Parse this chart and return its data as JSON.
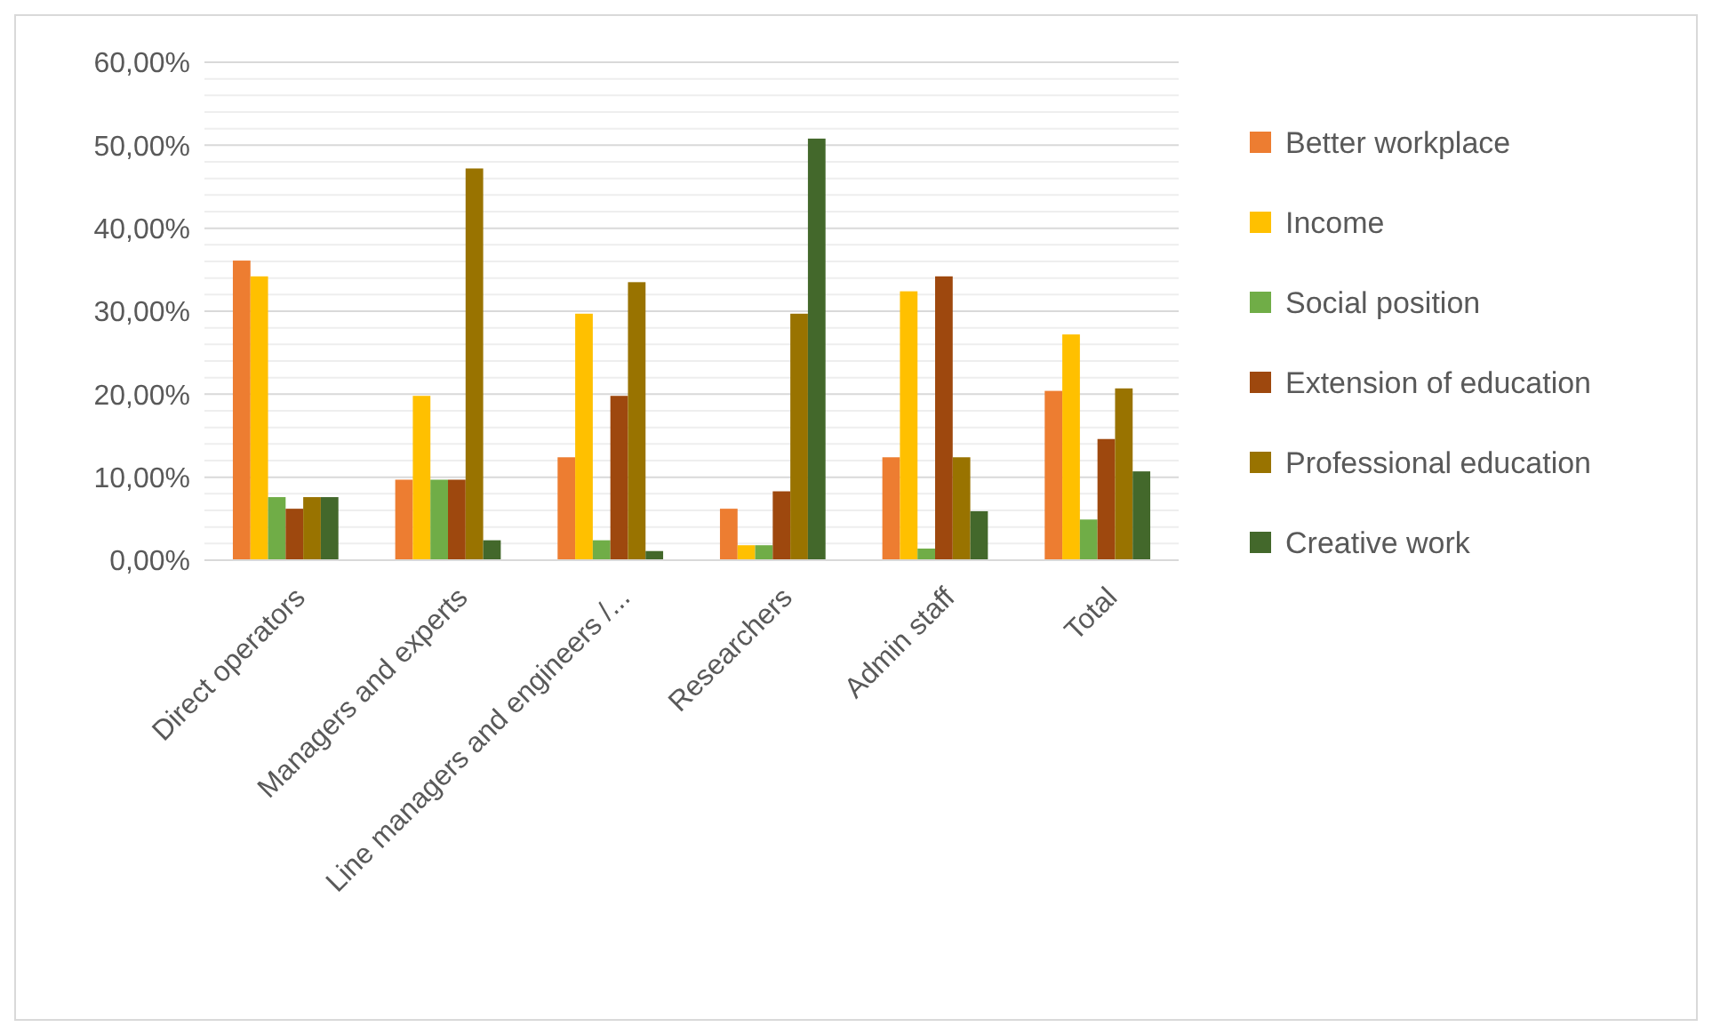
{
  "chart_data": {
    "type": "bar",
    "categories": [
      "Direct operators",
      "Managers and experts",
      "Line managers and engineers /...",
      "Researchers",
      "Admin staff",
      "Total"
    ],
    "series": [
      {
        "name": "Better workplace",
        "color": "#ed7d31",
        "values": [
          36.1,
          9.7,
          12.4,
          6.2,
          12.4,
          20.4
        ]
      },
      {
        "name": "Income",
        "color": "#ffc000",
        "values": [
          34.2,
          19.8,
          29.7,
          1.8,
          32.4,
          27.2
        ]
      },
      {
        "name": "Social position",
        "color": "#70ad47",
        "values": [
          7.6,
          9.7,
          2.4,
          1.8,
          1.4,
          4.9
        ]
      },
      {
        "name": "Extension of education",
        "color": "#9e480e",
        "values": [
          6.2,
          9.7,
          19.8,
          8.3,
          34.2,
          14.6
        ]
      },
      {
        "name": "Professional education",
        "color": "#997300",
        "values": [
          7.6,
          47.2,
          33.5,
          29.7,
          12.4,
          20.7
        ]
      },
      {
        "name": "Creative work",
        "color": "#43682b",
        "values": [
          7.6,
          2.4,
          1.1,
          50.8,
          5.9,
          10.7
        ]
      }
    ],
    "ylim": [
      0,
      60
    ],
    "yticks": [
      {
        "value": 0,
        "label": "0,00%"
      },
      {
        "value": 2,
        "label": null
      },
      {
        "value": 4,
        "label": null
      },
      {
        "value": 6,
        "label": null
      },
      {
        "value": 8,
        "label": null
      },
      {
        "value": 10,
        "label": "10,00%"
      },
      {
        "value": 12,
        "label": null
      },
      {
        "value": 14,
        "label": null
      },
      {
        "value": 16,
        "label": null
      },
      {
        "value": 18,
        "label": null
      },
      {
        "value": 20,
        "label": "20,00%"
      },
      {
        "value": 22,
        "label": null
      },
      {
        "value": 24,
        "label": null
      },
      {
        "value": 26,
        "label": null
      },
      {
        "value": 28,
        "label": null
      },
      {
        "value": 30,
        "label": "30,00%"
      },
      {
        "value": 32,
        "label": null
      },
      {
        "value": 34,
        "label": null
      },
      {
        "value": 36,
        "label": null
      },
      {
        "value": 38,
        "label": null
      },
      {
        "value": 40,
        "label": "40,00%"
      },
      {
        "value": 42,
        "label": null
      },
      {
        "value": 44,
        "label": null
      },
      {
        "value": 46,
        "label": null
      },
      {
        "value": 48,
        "label": null
      },
      {
        "value": 50,
        "label": "50,00%"
      },
      {
        "value": 52,
        "label": null
      },
      {
        "value": 54,
        "label": null
      },
      {
        "value": 56,
        "label": null
      },
      {
        "value": 58,
        "label": null
      },
      {
        "value": 60,
        "label": "60,00%"
      }
    ],
    "grid": "y",
    "legend": "right"
  }
}
